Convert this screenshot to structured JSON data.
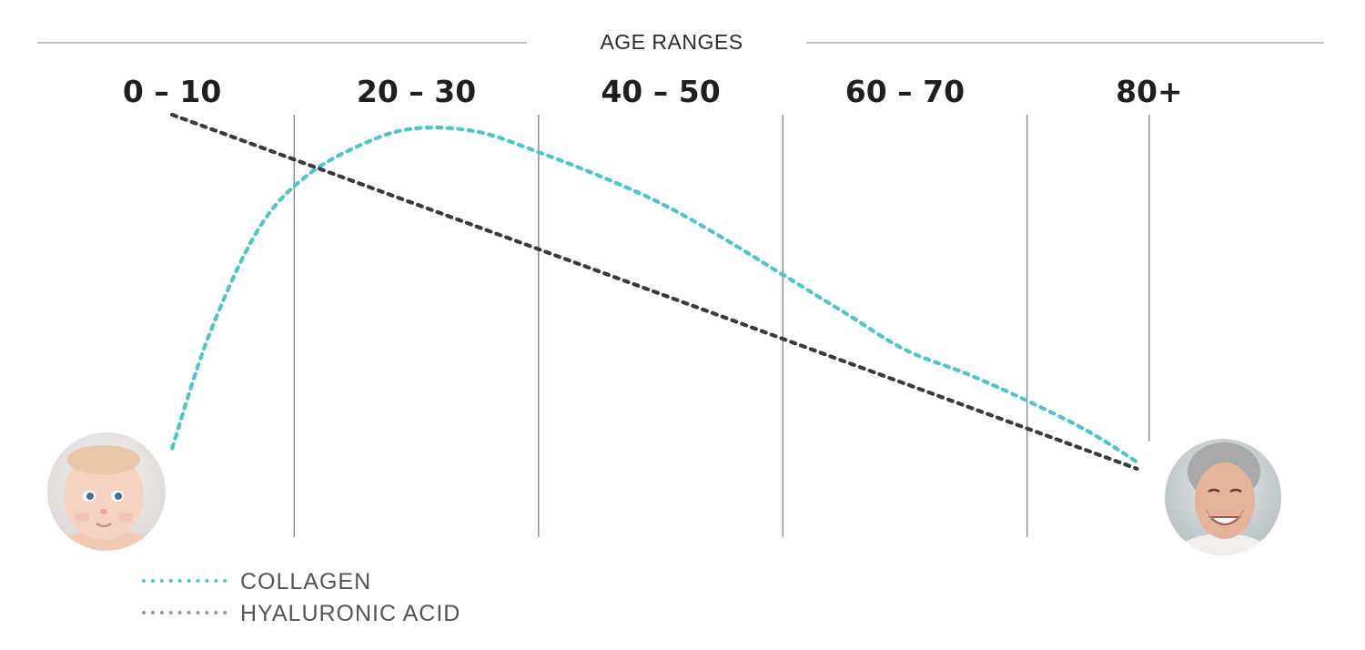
{
  "chart_data": {
    "type": "line",
    "title": "AGE RANGES",
    "categories": [
      "0 – 10",
      "20 – 30",
      "40 – 50",
      "60 – 70",
      "80+"
    ],
    "x": [
      5,
      25,
      45,
      65,
      85
    ],
    "xlim": [
      0,
      90
    ],
    "ylim": [
      0,
      100
    ],
    "grid": true,
    "legend_position": "bottom-left",
    "series": [
      {
        "name": "COLLAGEN",
        "color": "#4fc4c9",
        "style": "dotted",
        "points": [
          [
            5,
            2
          ],
          [
            8,
            35
          ],
          [
            12,
            66
          ],
          [
            16,
            82
          ],
          [
            21,
            92
          ],
          [
            25,
            96
          ],
          [
            30,
            95
          ],
          [
            35,
            89
          ],
          [
            40,
            82
          ],
          [
            45,
            74
          ],
          [
            50,
            64
          ],
          [
            55,
            53
          ],
          [
            60,
            42
          ],
          [
            65,
            31
          ],
          [
            70,
            24
          ],
          [
            75,
            16
          ],
          [
            80,
            7
          ],
          [
            84,
            -2
          ]
        ]
      },
      {
        "name": "HYALURONIC ACID",
        "color": "#3a3a3a",
        "style": "dotted",
        "points": [
          [
            5,
            100
          ],
          [
            84,
            -4
          ]
        ]
      }
    ],
    "annotations": [
      {
        "icon": "baby-face-icon",
        "at": "start"
      },
      {
        "icon": "elderly-woman-face-icon",
        "at": "end"
      }
    ]
  }
}
